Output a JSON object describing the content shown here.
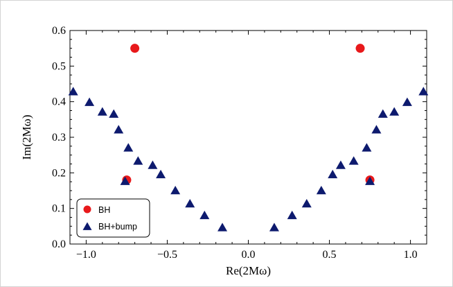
{
  "chart_data": {
    "type": "scatter",
    "title": "",
    "xlabel": "Re(2Mω)",
    "ylabel": "Im(2Mω)",
    "xlim": [
      -1.1,
      1.1
    ],
    "ylim": [
      0.0,
      0.6
    ],
    "x_ticks": [
      {
        "value": -1.0,
        "label": "−1.0"
      },
      {
        "value": -0.5,
        "label": "−0.5"
      },
      {
        "value": 0.0,
        "label": "0.0"
      },
      {
        "value": 0.5,
        "label": "0.5"
      },
      {
        "value": 1.0,
        "label": "1.0"
      }
    ],
    "y_ticks": [
      {
        "value": 0.0,
        "label": "0.0"
      },
      {
        "value": 0.1,
        "label": "0.1"
      },
      {
        "value": 0.2,
        "label": "0.2"
      },
      {
        "value": 0.3,
        "label": "0.3"
      },
      {
        "value": 0.4,
        "label": "0.4"
      },
      {
        "value": 0.5,
        "label": "0.5"
      },
      {
        "value": 0.6,
        "label": "0.6"
      }
    ],
    "grid": false,
    "legend_position": "bottom-left",
    "series": [
      {
        "name": "BH",
        "marker": "circle",
        "color": "#e8191b",
        "points": [
          {
            "x": -0.7,
            "y": 0.55
          },
          {
            "x": 0.69,
            "y": 0.55
          },
          {
            "x": -0.75,
            "y": 0.18
          },
          {
            "x": 0.75,
            "y": 0.18
          }
        ]
      },
      {
        "name": "BH+bump",
        "marker": "triangle",
        "color": "#0d1a6e",
        "points": [
          {
            "x": -1.08,
            "y": 0.43
          },
          {
            "x": -0.98,
            "y": 0.4
          },
          {
            "x": -0.9,
            "y": 0.373
          },
          {
            "x": -0.83,
            "y": 0.367
          },
          {
            "x": -0.8,
            "y": 0.323
          },
          {
            "x": -0.74,
            "y": 0.272
          },
          {
            "x": -0.68,
            "y": 0.235
          },
          {
            "x": -0.59,
            "y": 0.223
          },
          {
            "x": -0.54,
            "y": 0.197
          },
          {
            "x": -0.45,
            "y": 0.152
          },
          {
            "x": -0.36,
            "y": 0.115
          },
          {
            "x": -0.27,
            "y": 0.082
          },
          {
            "x": -0.16,
            "y": 0.048
          },
          {
            "x": 0.16,
            "y": 0.048
          },
          {
            "x": 0.27,
            "y": 0.082
          },
          {
            "x": 0.36,
            "y": 0.115
          },
          {
            "x": 0.45,
            "y": 0.152
          },
          {
            "x": 0.52,
            "y": 0.197
          },
          {
            "x": 0.57,
            "y": 0.223
          },
          {
            "x": 0.65,
            "y": 0.235
          },
          {
            "x": 0.73,
            "y": 0.272
          },
          {
            "x": 0.79,
            "y": 0.323
          },
          {
            "x": 0.83,
            "y": 0.367
          },
          {
            "x": 0.9,
            "y": 0.373
          },
          {
            "x": 0.98,
            "y": 0.4
          },
          {
            "x": 1.08,
            "y": 0.43
          },
          {
            "x": -0.76,
            "y": 0.178
          },
          {
            "x": 0.75,
            "y": 0.178
          }
        ]
      }
    ]
  }
}
